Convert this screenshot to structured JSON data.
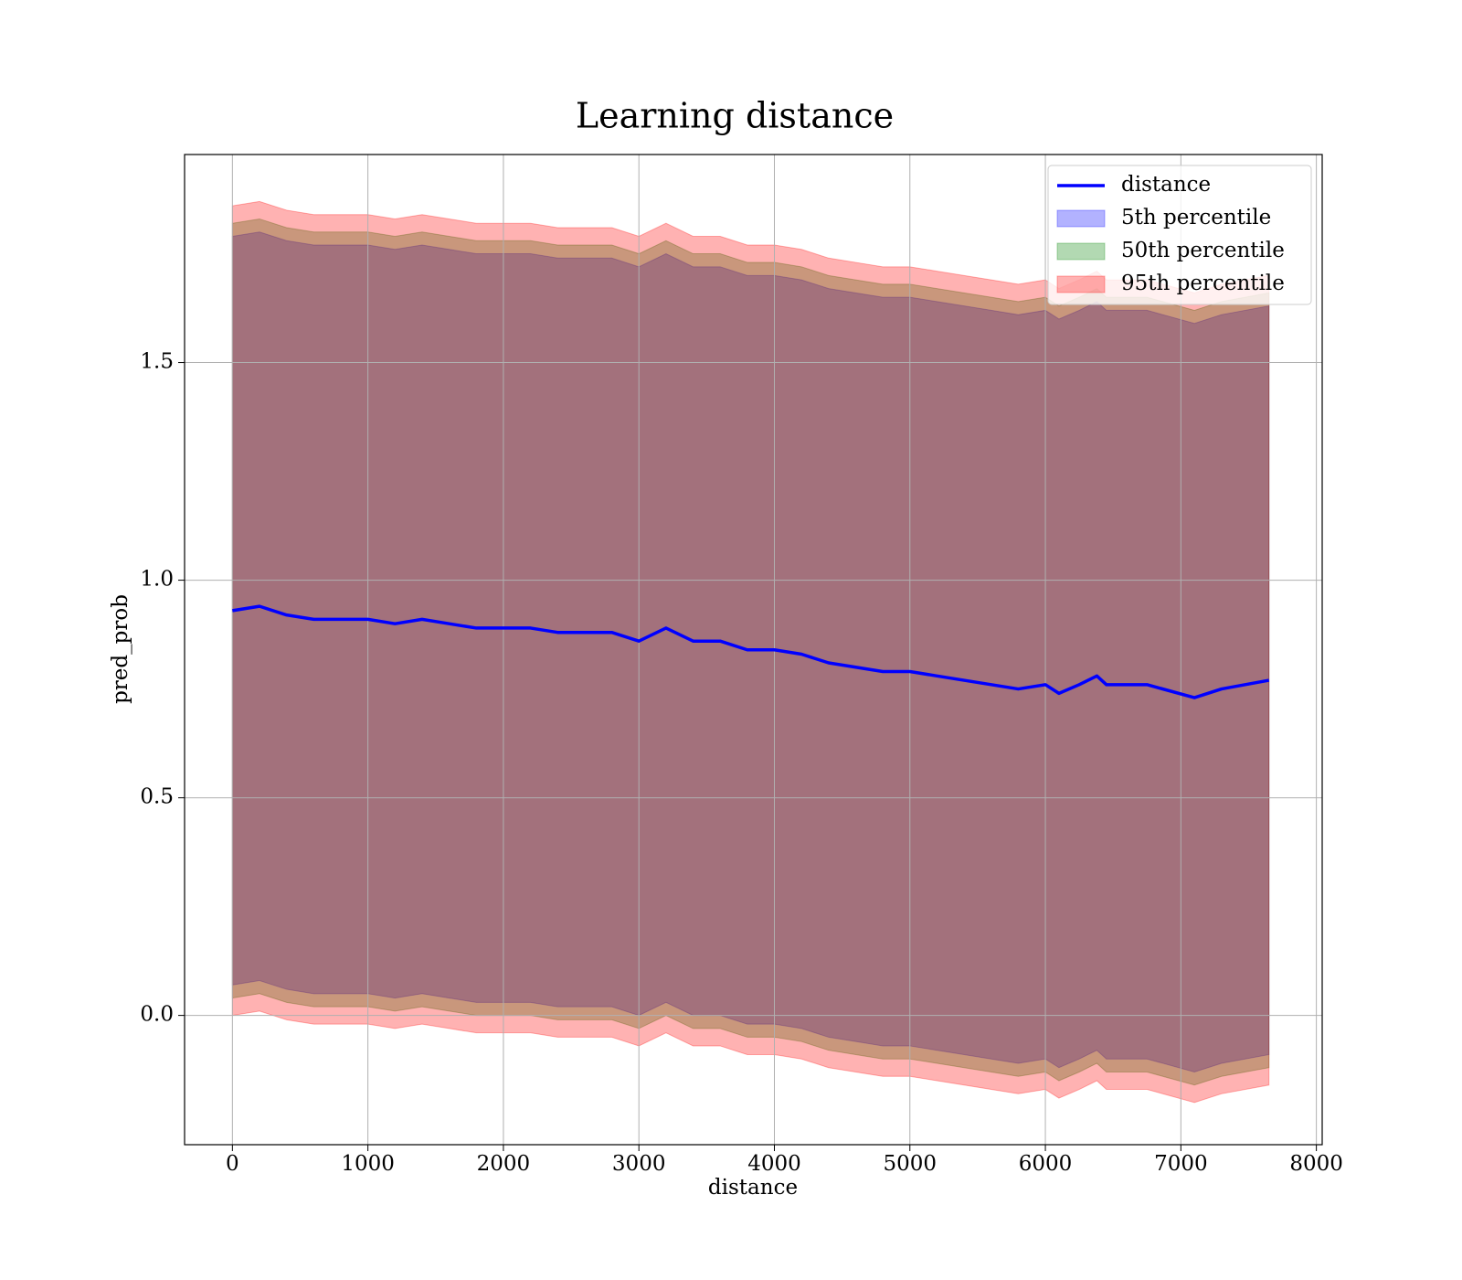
{
  "chart_data": {
    "type": "line",
    "title": "Learning distance",
    "xlabel": "distance",
    "ylabel": "pred_prob",
    "x": [
      0,
      200,
      400,
      600,
      800,
      1000,
      1200,
      1400,
      1600,
      1800,
      2000,
      2200,
      2400,
      2600,
      2800,
      3000,
      3200,
      3400,
      3600,
      3800,
      4000,
      4200,
      4400,
      4600,
      4800,
      5000,
      5200,
      5400,
      5600,
      5800,
      6000,
      6100,
      6250,
      6380,
      6450,
      6750,
      7100,
      7300,
      7650
    ],
    "series": [
      {
        "name": "distance",
        "color": "#0000ff",
        "values": [
          0.93,
          0.94,
          0.92,
          0.91,
          0.91,
          0.91,
          0.9,
          0.91,
          0.9,
          0.89,
          0.89,
          0.89,
          0.88,
          0.88,
          0.88,
          0.86,
          0.89,
          0.86,
          0.86,
          0.84,
          0.84,
          0.83,
          0.81,
          0.8,
          0.79,
          0.79,
          0.78,
          0.77,
          0.76,
          0.75,
          0.76,
          0.74,
          0.76,
          0.78,
          0.76,
          0.76,
          0.73,
          0.75,
          0.77
        ]
      }
    ],
    "bands": [
      {
        "name": "5th percentile",
        "color": "#0000ff",
        "lower": [
          0.07,
          0.08,
          0.06,
          0.05,
          0.05,
          0.05,
          0.04,
          0.05,
          0.04,
          0.03,
          0.03,
          0.03,
          0.02,
          0.02,
          0.02,
          0.0,
          0.03,
          0.0,
          0.0,
          -0.02,
          -0.02,
          -0.03,
          -0.05,
          -0.06,
          -0.07,
          -0.07,
          -0.08,
          -0.09,
          -0.1,
          -0.11,
          -0.1,
          -0.12,
          -0.1,
          -0.08,
          -0.1,
          -0.1,
          -0.13,
          -0.11,
          -0.09
        ],
        "upper": [
          1.79,
          1.8,
          1.78,
          1.77,
          1.77,
          1.77,
          1.76,
          1.77,
          1.76,
          1.75,
          1.75,
          1.75,
          1.74,
          1.74,
          1.74,
          1.72,
          1.75,
          1.72,
          1.72,
          1.7,
          1.7,
          1.69,
          1.67,
          1.66,
          1.65,
          1.65,
          1.64,
          1.63,
          1.62,
          1.61,
          1.62,
          1.6,
          1.62,
          1.64,
          1.62,
          1.62,
          1.59,
          1.61,
          1.63
        ]
      },
      {
        "name": "50th percentile",
        "color": "#008000",
        "lower": [
          0.04,
          0.05,
          0.03,
          0.02,
          0.02,
          0.02,
          0.01,
          0.02,
          0.01,
          0.0,
          0.0,
          0.0,
          -0.01,
          -0.01,
          -0.01,
          -0.03,
          0.0,
          -0.03,
          -0.03,
          -0.05,
          -0.05,
          -0.06,
          -0.08,
          -0.09,
          -0.1,
          -0.1,
          -0.11,
          -0.12,
          -0.13,
          -0.14,
          -0.13,
          -0.15,
          -0.13,
          -0.11,
          -0.13,
          -0.13,
          -0.16,
          -0.14,
          -0.12
        ],
        "upper": [
          1.82,
          1.83,
          1.81,
          1.8,
          1.8,
          1.8,
          1.79,
          1.8,
          1.79,
          1.78,
          1.78,
          1.78,
          1.77,
          1.77,
          1.77,
          1.75,
          1.78,
          1.75,
          1.75,
          1.73,
          1.73,
          1.72,
          1.7,
          1.69,
          1.68,
          1.68,
          1.67,
          1.66,
          1.65,
          1.64,
          1.65,
          1.63,
          1.65,
          1.67,
          1.65,
          1.65,
          1.62,
          1.64,
          1.66
        ]
      },
      {
        "name": "95th percentile",
        "color": "#ff0000",
        "lower": [
          0.0,
          0.01,
          -0.01,
          -0.02,
          -0.02,
          -0.02,
          -0.03,
          -0.02,
          -0.03,
          -0.04,
          -0.04,
          -0.04,
          -0.05,
          -0.05,
          -0.05,
          -0.07,
          -0.04,
          -0.07,
          -0.07,
          -0.09,
          -0.09,
          -0.1,
          -0.12,
          -0.13,
          -0.14,
          -0.14,
          -0.15,
          -0.16,
          -0.17,
          -0.18,
          -0.17,
          -0.19,
          -0.17,
          -0.15,
          -0.17,
          -0.17,
          -0.2,
          -0.18,
          -0.16
        ],
        "upper": [
          1.86,
          1.87,
          1.85,
          1.84,
          1.84,
          1.84,
          1.83,
          1.84,
          1.83,
          1.82,
          1.82,
          1.82,
          1.81,
          1.81,
          1.81,
          1.79,
          1.82,
          1.79,
          1.79,
          1.77,
          1.77,
          1.76,
          1.74,
          1.73,
          1.72,
          1.72,
          1.71,
          1.7,
          1.69,
          1.68,
          1.69,
          1.67,
          1.69,
          1.71,
          1.69,
          1.69,
          1.66,
          1.68,
          1.7
        ]
      }
    ],
    "band_opacity": 0.3,
    "xlim": [
      -353,
      8043
    ],
    "ylim": [
      -0.297,
      1.978
    ],
    "xticks": [
      0,
      1000,
      2000,
      3000,
      4000,
      5000,
      6000,
      7000,
      8000
    ],
    "yticks": [
      {
        "value": 0,
        "label": "0.0"
      },
      0.5,
      {
        "value": 1,
        "label": "1.0"
      },
      1.5
    ],
    "grid": true,
    "legend": "upper right"
  }
}
